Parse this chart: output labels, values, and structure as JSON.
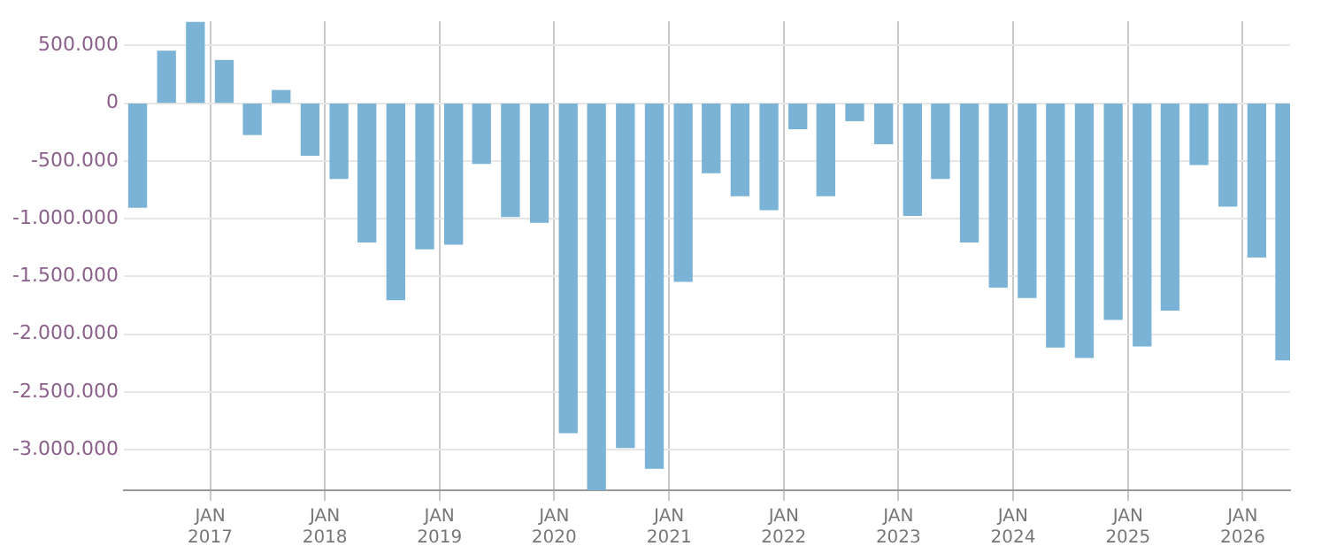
{
  "chart_data": {
    "type": "bar",
    "x": [
      "2016-05-15",
      "2016-08-15",
      "2016-11-15",
      "2017-02-15",
      "2017-05-15",
      "2017-08-15",
      "2017-11-15",
      "2018-02-15",
      "2018-05-15",
      "2018-08-15",
      "2018-11-15",
      "2019-02-15",
      "2019-05-15",
      "2019-08-15",
      "2019-11-15",
      "2020-02-15",
      "2020-05-15",
      "2020-08-15",
      "2020-11-15",
      "2021-02-15",
      "2021-05-15",
      "2021-08-15",
      "2021-11-15",
      "2022-02-15",
      "2022-05-15",
      "2022-08-15",
      "2022-11-15",
      "2023-02-15",
      "2023-05-15",
      "2023-08-15",
      "2023-11-15",
      "2024-02-15",
      "2024-05-15",
      "2024-08-15",
      "2024-11-15",
      "2025-02-15",
      "2025-05-15",
      "2025-08-15",
      "2025-11-15",
      "2026-02-15",
      "2026-05-15"
    ],
    "values": [
      -900000,
      450000,
      700000,
      370000,
      -270000,
      110000,
      -450000,
      -650000,
      -1200000,
      -1700000,
      -1260000,
      -1220000,
      -520000,
      -980000,
      -1030000,
      -2850000,
      -3350000,
      -2980000,
      -3160000,
      -1540000,
      -600000,
      -800000,
      -920000,
      -220000,
      -800000,
      -150000,
      -350000,
      -970000,
      -650000,
      -1200000,
      -1590000,
      -1680000,
      -2110000,
      -2200000,
      -1870000,
      -2100000,
      -1790000,
      -530000,
      -890000,
      -1330000,
      -2220000
    ],
    "color": "#7ab3d6",
    "xlim": [
      "2016-04-01",
      "2026-06-01"
    ],
    "xticks": [
      {
        "value": "2017-01-01",
        "label": "JAN 2017"
      },
      {
        "value": "2018-01-01",
        "label": "JAN 2018"
      },
      {
        "value": "2019-01-01",
        "label": "JAN 2019"
      },
      {
        "value": "2020-01-01",
        "label": "JAN 2020"
      },
      {
        "value": "2021-01-01",
        "label": "JAN 2021"
      },
      {
        "value": "2022-01-01",
        "label": "JAN 2022"
      },
      {
        "value": "2023-01-01",
        "label": "JAN 2023"
      },
      {
        "value": "2024-01-01",
        "label": "JAN 2024"
      },
      {
        "value": "2025-01-01",
        "label": "JAN 2025"
      },
      {
        "value": "2026-01-01",
        "label": "JAN 2026"
      }
    ],
    "ylim": [
      -3350000,
      710000
    ],
    "yticks": [
      {
        "value": 500000,
        "label": "500.000"
      },
      {
        "value": 0,
        "label": "0"
      },
      {
        "value": -500000,
        "label": "-500.000"
      },
      {
        "value": -1000000,
        "label": "-1.000.000"
      },
      {
        "value": -1500000,
        "label": "-1.500.000"
      },
      {
        "value": -2000000,
        "label": "-2.000.000"
      },
      {
        "value": -2500000,
        "label": "-2.500.000"
      },
      {
        "value": -3000000,
        "label": "-3.000.000"
      }
    ],
    "grid": true
  }
}
